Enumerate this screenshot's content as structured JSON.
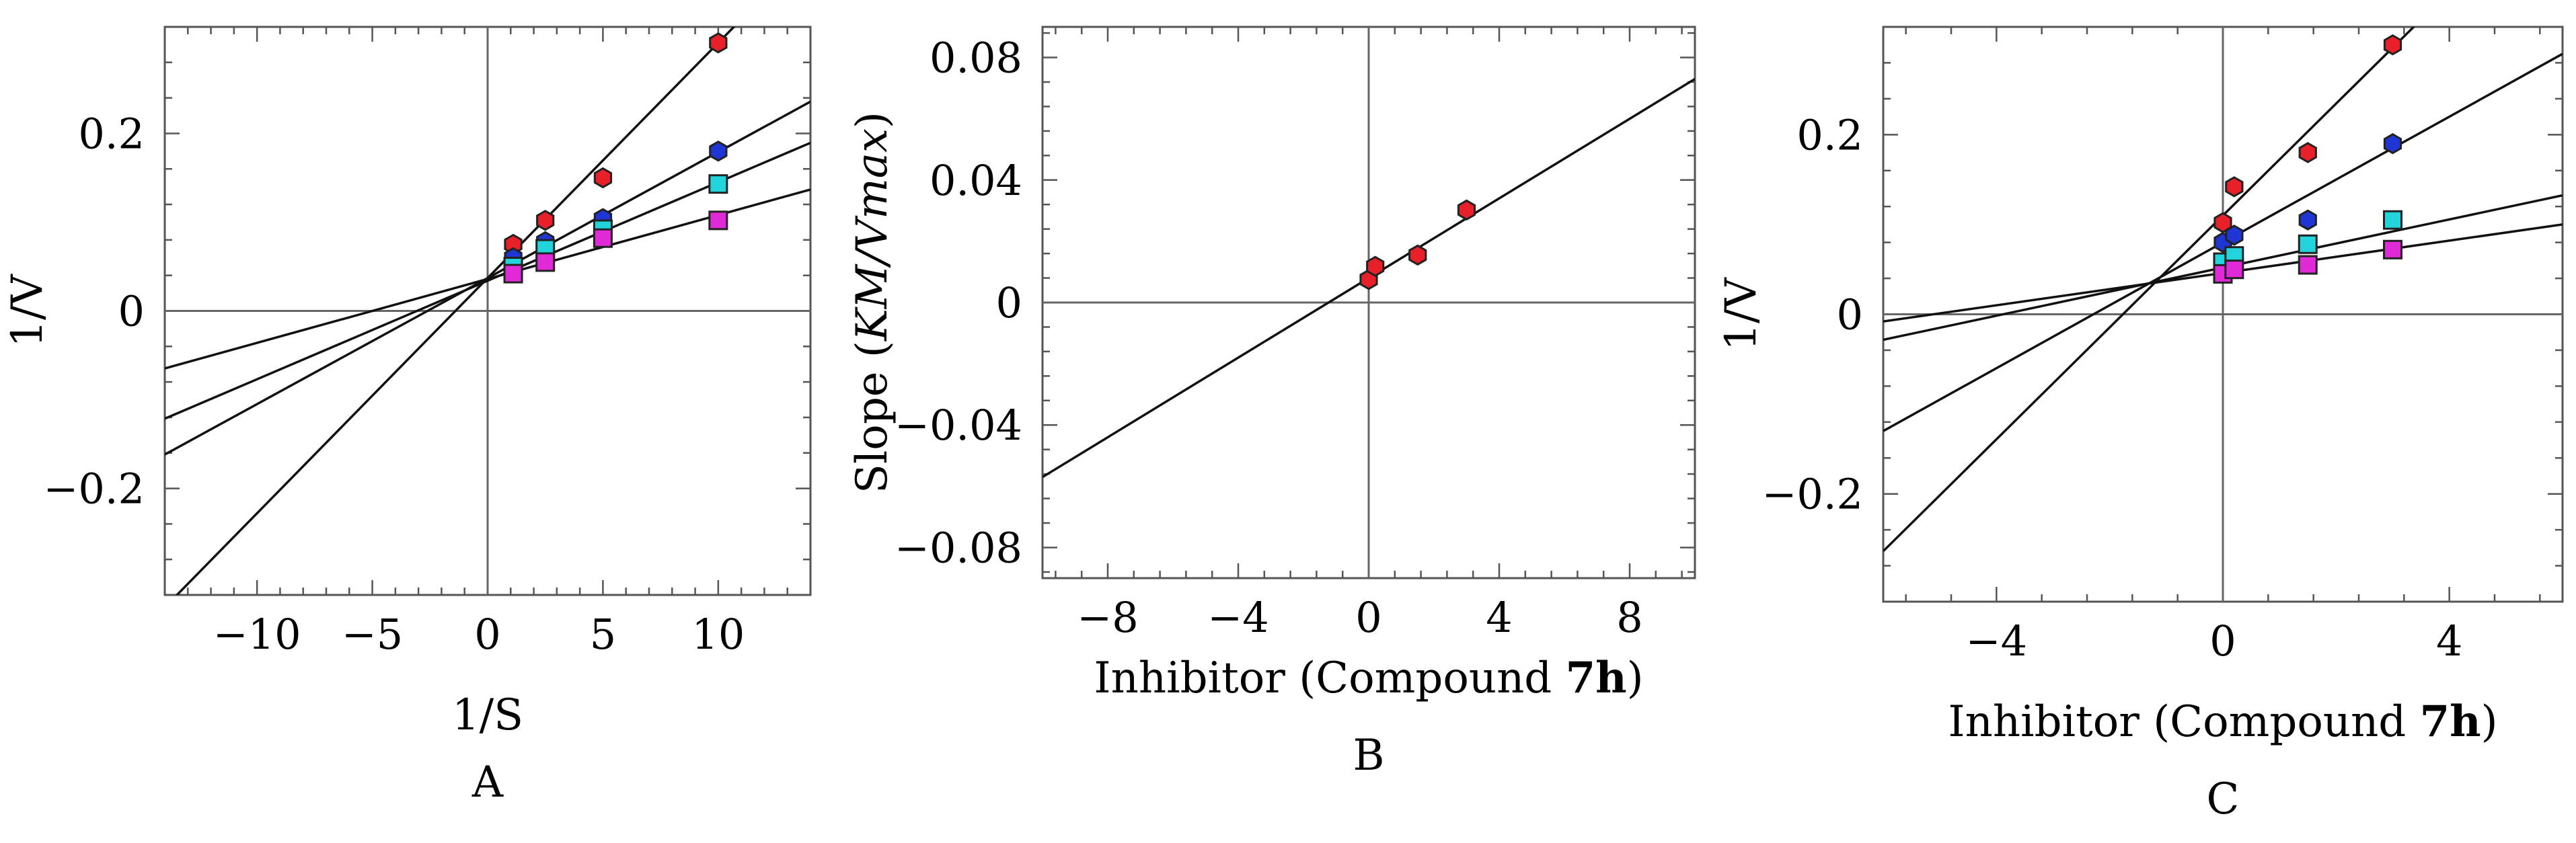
{
  "chart_data": [
    {
      "type": "scatter",
      "panel_label": "A",
      "xlabel": "1/S",
      "ylabel": "1/V",
      "xlim": [
        -14,
        14
      ],
      "ylim": [
        -0.32,
        0.32
      ],
      "xticks": [
        -10,
        -5,
        0,
        5,
        10
      ],
      "yticks": [
        -0.2,
        0,
        0.2
      ],
      "grid": false,
      "series": [
        {
          "color": "#e8202a",
          "marker": "hexagon",
          "x": [
            1.11,
            2.5,
            5,
            10
          ],
          "y": [
            0.075,
            0.102,
            0.15,
            0.302
          ]
        },
        {
          "color": "#1f35d4",
          "marker": "hexagon",
          "x": [
            1.11,
            2.5,
            5,
            10
          ],
          "y": [
            0.06,
            0.078,
            0.104,
            0.18
          ]
        },
        {
          "color": "#22d3dc",
          "marker": "square",
          "x": [
            1.11,
            2.5,
            5,
            10
          ],
          "y": [
            0.05,
            0.07,
            0.092,
            0.143
          ]
        },
        {
          "color": "#e02ad8",
          "marker": "square",
          "x": [
            1.11,
            2.5,
            5,
            10
          ],
          "y": [
            0.042,
            0.055,
            0.082,
            0.102
          ]
        }
      ],
      "lines": [
        {
          "slope": 0.0265,
          "intercept": 0.037
        },
        {
          "slope": 0.0142,
          "intercept": 0.037
        },
        {
          "slope": 0.0111,
          "intercept": 0.034
        },
        {
          "slope": 0.0072,
          "intercept": 0.036
        }
      ]
    },
    {
      "type": "scatter",
      "panel_label": "B",
      "xlabel": "Inhibitor (Compound 7h)",
      "ylabel": "Slope (KM/Vmax)",
      "xlim": [
        -10,
        10
      ],
      "ylim": [
        -0.09,
        0.09
      ],
      "xticks": [
        -8,
        -4,
        0,
        4,
        8
      ],
      "yticks": [
        -0.08,
        -0.04,
        0,
        0.04,
        0.08
      ],
      "grid": false,
      "series": [
        {
          "color": "#e8202a",
          "marker": "hexagon",
          "x": [
            0,
            0.2,
            1.5,
            3
          ],
          "y": [
            0.0075,
            0.0118,
            0.0155,
            0.0302
          ]
        }
      ],
      "lines": [
        {
          "slope": 0.0065,
          "intercept": 0.008
        }
      ]
    },
    {
      "type": "scatter",
      "panel_label": "C",
      "xlabel": "Inhibitor (Compound 7h)",
      "ylabel": "1/V",
      "xlim": [
        -6,
        6
      ],
      "ylim": [
        -0.32,
        0.32
      ],
      "xticks": [
        -4,
        0,
        4
      ],
      "yticks": [
        -0.2,
        0,
        0.2
      ],
      "grid": false,
      "series": [
        {
          "color": "#e8202a",
          "marker": "hexagon",
          "x": [
            0,
            0.2,
            1.5,
            3
          ],
          "y": [
            0.102,
            0.142,
            0.18,
            0.3
          ]
        },
        {
          "color": "#1f35d4",
          "marker": "hexagon",
          "x": [
            0,
            0.2,
            1.5,
            3
          ],
          "y": [
            0.08,
            0.088,
            0.105,
            0.19
          ]
        },
        {
          "color": "#22d3dc",
          "marker": "square",
          "x": [
            0,
            0.2,
            1.5,
            3
          ],
          "y": [
            0.058,
            0.065,
            0.078,
            0.105
          ]
        },
        {
          "color": "#e02ad8",
          "marker": "square",
          "x": [
            0,
            0.2,
            1.5,
            3
          ],
          "y": [
            0.045,
            0.05,
            0.055,
            0.072
          ]
        }
      ],
      "lines": [
        {
          "slope": 0.0623,
          "intercept": 0.11
        },
        {
          "slope": 0.035,
          "intercept": 0.08
        },
        {
          "slope": 0.0134,
          "intercept": 0.052
        },
        {
          "slope": 0.009,
          "intercept": 0.046
        }
      ]
    }
  ]
}
